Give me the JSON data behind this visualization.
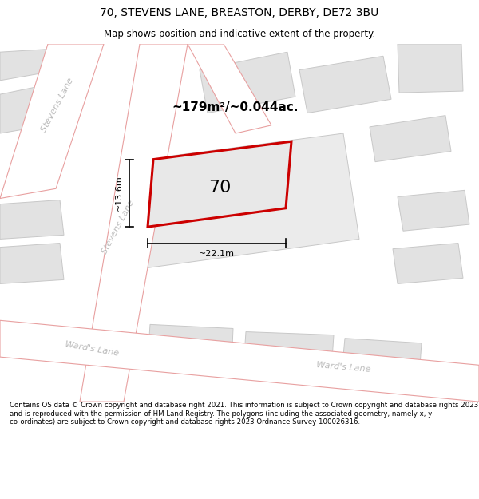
{
  "title": "70, STEVENS LANE, BREASTON, DERBY, DE72 3BU",
  "subtitle": "Map shows position and indicative extent of the property.",
  "footer": "Contains OS data © Crown copyright and database right 2021. This information is subject to Crown copyright and database rights 2023 and is reproduced with the permission of HM Land Registry. The polygons (including the associated geometry, namely x, y co-ordinates) are subject to Crown copyright and database rights 2023 Ordnance Survey 100026316.",
  "map_bg": "#f5f5f5",
  "road_color": "#ffffff",
  "building_color": "#e2e2e2",
  "road_line_color": "#e8a0a0",
  "highlight_poly_color": "#cc0000",
  "highlight_poly_fill": "#e8e8e8",
  "area_label": "~179m²/~0.044ac.",
  "width_label": "~22.1m",
  "height_label": "~13.6m",
  "number_label": "70",
  "stevens_lane_label1": "Stevens Lane",
  "stevens_lane_label2": "Stevens Lane",
  "wards_lane_label1": "Ward's Lane",
  "wards_lane_label2": "Ward's Lane",
  "title_fontsize": 10,
  "subtitle_fontsize": 8.5,
  "footer_fontsize": 6.2
}
